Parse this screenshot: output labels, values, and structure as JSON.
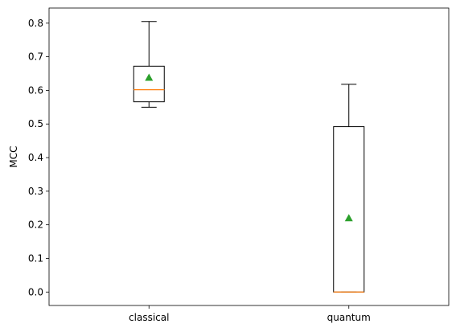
{
  "chart_data": {
    "type": "boxplot",
    "title": "",
    "xlabel": "",
    "ylabel": "MCC",
    "ylim": [
      -0.04,
      0.845
    ],
    "yticks": [
      0.0,
      0.1,
      0.2,
      0.3,
      0.4,
      0.5,
      0.6,
      0.7,
      0.8
    ],
    "ytick_labels": [
      "0.0",
      "0.1",
      "0.2",
      "0.3",
      "0.4",
      "0.5",
      "0.6",
      "0.7",
      "0.8"
    ],
    "categories": [
      "classical",
      "quantum"
    ],
    "boxes": [
      {
        "category": "classical",
        "whisker_low": 0.55,
        "q1": 0.566,
        "median": 0.602,
        "q3": 0.672,
        "whisker_high": 0.805,
        "mean": 0.638
      },
      {
        "category": "quantum",
        "whisker_low": 0.0,
        "q1": 0.0,
        "median": 0.0,
        "q3": 0.492,
        "whisker_high": 0.618,
        "mean": 0.22
      }
    ],
    "colors": {
      "box": "#000000",
      "median": "#ff7f0e",
      "mean": "#2ca02c"
    },
    "grid": false,
    "legend": "none"
  }
}
